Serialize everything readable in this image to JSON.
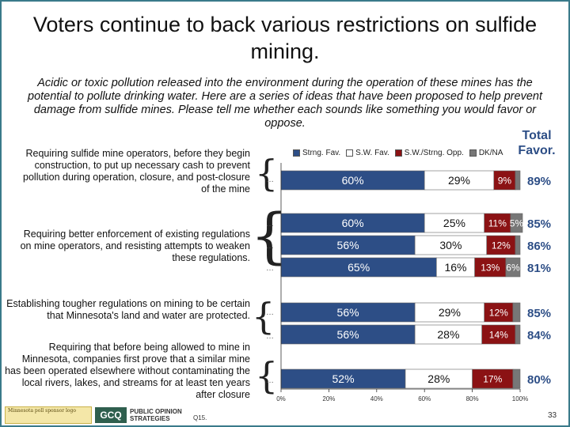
{
  "title": "Voters continue to back various restrictions on sulfide mining.",
  "question": "Acidic or toxic pollution released into the environment during the operation of these mines has the potential to pollute drinking water.  Here are a series of ideas that have been proposed to help prevent damage from sulfide mines.  Please tell me whether each sounds like something you would favor or oppose.",
  "total_header": "Total Favor.",
  "colors": {
    "strng_fav": "#2d4e86",
    "sw_fav": "#ffffff",
    "sw_strng_opp": "#8b1214",
    "dk_na": "#777777",
    "text_on_dark": "#ffffff",
    "text_on_light": "#111111"
  },
  "statements": [
    "Requiring sulfide mine operators, before they begin construction, to put up necessary cash to prevent pollution during operation, closure, and post-closure of the mine",
    "Requiring better enforcement of existing regulations on mine operators, and resisting attempts to weaken these regulations.",
    "Establishing tougher regulations on mining to be certain that Minnesota's land and water are protected.",
    "Requiring that before being allowed to mine in Minnesota, companies first prove that a similar mine has been operated elsewhere without contaminating the local rivers, lakes, and streams for at least ten years after closure"
  ],
  "ellipsis": "…",
  "footnote": "Q15.",
  "page_number": "33",
  "logo": {
    "pos_mark": "GCQ",
    "pos_line1": "PUBLIC OPINION",
    "pos_line2": "STRATEGIES",
    "left_logo_text": "Minnesota poll sponsor logo"
  },
  "chart_data": {
    "type": "bar",
    "orientation": "horizontal",
    "stacked": true,
    "series_names": [
      "Strng. Fav.",
      "S.W. Fav.",
      "S.W./Strng. Opp.",
      "DK/NA"
    ],
    "rows": [
      {
        "values": [
          60,
          29,
          9,
          2
        ],
        "labels": [
          "60%",
          "29%",
          "9%",
          ""
        ],
        "total": "89%"
      },
      {
        "values": [
          60,
          25,
          11,
          5
        ],
        "labels": [
          "60%",
          "25%",
          "11%",
          "5%"
        ],
        "total": "85%"
      },
      {
        "values": [
          56,
          30,
          12,
          2
        ],
        "labels": [
          "56%",
          "30%",
          "12%",
          ""
        ],
        "total": "86%"
      },
      {
        "values": [
          65,
          16,
          13,
          6
        ],
        "labels": [
          "65%",
          "16%",
          "13%",
          "6%"
        ],
        "total": "81%"
      },
      {
        "values": [
          56,
          29,
          12,
          3
        ],
        "labels": [
          "56%",
          "29%",
          "12%",
          ""
        ],
        "total": "85%"
      },
      {
        "values": [
          56,
          28,
          14,
          2
        ],
        "labels": [
          "56%",
          "28%",
          "14%",
          ""
        ],
        "total": "84%"
      },
      {
        "values": [
          52,
          28,
          17,
          3
        ],
        "labels": [
          "52%",
          "28%",
          "17%",
          ""
        ],
        "total": "80%"
      }
    ],
    "xlim": [
      0,
      100
    ],
    "x_ticks": [
      "0%",
      "20%",
      "40%",
      "60%",
      "80%",
      "100%"
    ]
  }
}
